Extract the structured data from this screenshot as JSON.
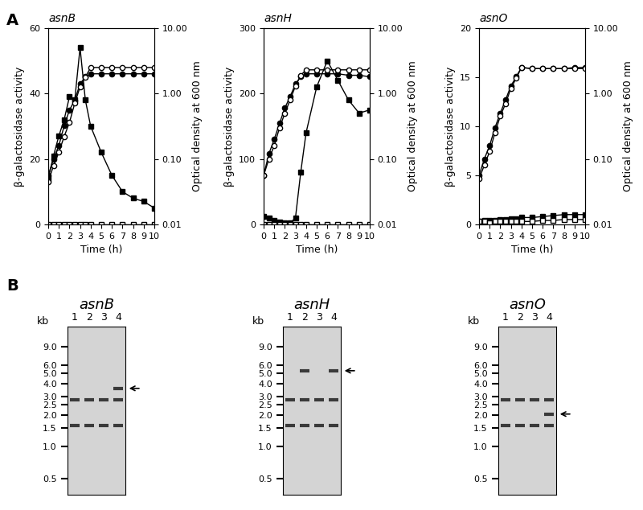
{
  "panel_labels": [
    "A",
    "B"
  ],
  "chart_data": [
    {
      "type": "line",
      "title": "asnB",
      "xlabel": "Time (h)",
      "ylabel": "β-galactosidase activity",
      "y2label": "Optical density at 600 nm",
      "x": [
        0,
        0.5,
        1,
        1.5,
        2,
        2.5,
        3,
        3.5,
        4,
        5,
        6,
        7,
        8,
        9,
        10
      ],
      "xlim": [
        0,
        10
      ],
      "xticks": [
        0,
        1,
        2,
        3,
        4,
        5,
        6,
        7,
        8,
        9,
        10
      ],
      "ylim": [
        0,
        60
      ],
      "yticks": [
        0,
        20,
        40,
        60
      ],
      "y2lim": [
        0.01,
        10
      ],
      "y2ticks": [
        {
          "value": 0.01,
          "label": "0.01"
        },
        {
          "value": 0.1,
          "label": "0.10"
        },
        {
          "value": 1,
          "label": "1.00"
        },
        {
          "value": 10,
          "label": "10.00"
        }
      ],
      "log": "y2",
      "series": [
        {
          "marker": "filled_square",
          "color": "#000000",
          "values": [
            14,
            21,
            27,
            32,
            39,
            38,
            54,
            38,
            30,
            22,
            15,
            10,
            8,
            7,
            5
          ]
        },
        {
          "marker": "open_square",
          "color": "#000000",
          "values": [
            0,
            0,
            0,
            0,
            0,
            0,
            0,
            0,
            0,
            0,
            0,
            0,
            0,
            0,
            0
          ]
        },
        {
          "marker": "filled_circle",
          "color": "#000000",
          "axis": "y2",
          "values": [
            0.056,
            0.1,
            0.16,
            0.32,
            0.56,
            0.79,
            1.4,
            1.8,
            2.0,
            2.0,
            2.0,
            2.0,
            2.0,
            2.0,
            2.0
          ]
        },
        {
          "marker": "open_circle",
          "color": "#000000",
          "axis": "y2",
          "values": [
            0.045,
            0.079,
            0.126,
            0.22,
            0.36,
            0.71,
            1.26,
            1.78,
            2.5,
            2.5,
            2.5,
            2.5,
            2.5,
            2.5,
            2.5
          ]
        }
      ]
    },
    {
      "type": "line",
      "title": "asnH",
      "xlabel": "Time (h)",
      "ylabel": "β-galactosidase activity",
      "y2label": "Optical density at 600 nm",
      "x": [
        0,
        0.5,
        1,
        1.5,
        2,
        2.5,
        3,
        3.5,
        4,
        5,
        6,
        7,
        8,
        9,
        10
      ],
      "xlim": [
        0,
        10
      ],
      "xticks": [
        0,
        1,
        2,
        3,
        4,
        5,
        6,
        7,
        8,
        9,
        10
      ],
      "ylim": [
        0,
        300
      ],
      "yticks": [
        0,
        100,
        200,
        300
      ],
      "y2lim": [
        0.01,
        10
      ],
      "y2ticks": [
        {
          "value": 0.01,
          "label": "0.01"
        },
        {
          "value": 0.1,
          "label": "0.10"
        },
        {
          "value": 1,
          "label": "1.00"
        },
        {
          "value": 10,
          "label": "10.00"
        }
      ],
      "log": "y2",
      "series": [
        {
          "marker": "filled_square",
          "color": "#000000",
          "values": [
            12,
            10,
            6,
            4,
            3,
            2,
            10,
            80,
            140,
            210,
            250,
            220,
            190,
            170,
            175
          ]
        },
        {
          "marker": "open_square",
          "color": "#000000",
          "values": [
            0,
            0,
            0,
            0,
            0,
            0,
            0,
            0,
            0,
            0,
            0,
            0,
            0,
            0,
            0
          ]
        },
        {
          "marker": "filled_circle",
          "color": "#000000",
          "axis": "y2",
          "values": [
            0.056,
            0.12,
            0.2,
            0.35,
            0.6,
            0.9,
            1.4,
            1.8,
            2.0,
            2.0,
            2.0,
            2.0,
            1.9,
            1.9,
            1.8
          ]
        },
        {
          "marker": "open_circle",
          "color": "#000000",
          "axis": "y2",
          "values": [
            0.056,
            0.1,
            0.16,
            0.3,
            0.5,
            0.8,
            1.3,
            1.9,
            2.3,
            2.3,
            2.3,
            2.3,
            2.3,
            2.3,
            2.3
          ]
        }
      ]
    },
    {
      "type": "line",
      "title": "asnO",
      "xlabel": "Time (h)",
      "ylabel": "β-galactosidase activity",
      "y2label": "Optical density at 600 nm",
      "x": [
        0,
        0.5,
        1,
        1.5,
        2,
        2.5,
        3,
        3.5,
        4,
        5,
        6,
        7,
        8,
        9,
        10
      ],
      "xlim": [
        0,
        10
      ],
      "xticks": [
        0,
        1,
        2,
        3,
        4,
        5,
        6,
        7,
        8,
        9,
        10
      ],
      "ylim": [
        0,
        20
      ],
      "yticks": [
        0,
        5,
        10,
        15,
        20
      ],
      "y2lim": [
        0.01,
        10
      ],
      "y2ticks": [
        {
          "value": 0.01,
          "label": "0.01"
        },
        {
          "value": 0.1,
          "label": "0.10"
        },
        {
          "value": 1,
          "label": "1.00"
        },
        {
          "value": 10,
          "label": "10.00"
        }
      ],
      "log": "y2",
      "series": [
        {
          "marker": "filled_square",
          "color": "#000000",
          "values": [
            0.3,
            0.4,
            0.4,
            0.4,
            0.5,
            0.5,
            0.6,
            0.6,
            0.7,
            0.7,
            0.8,
            0.9,
            1.0,
            1.0,
            1.0
          ]
        },
        {
          "marker": "open_square",
          "color": "#000000",
          "values": [
            0.3,
            0.3,
            0.2,
            0.3,
            0.3,
            0.3,
            0.3,
            0.3,
            0.3,
            0.3,
            0.4,
            0.4,
            0.5,
            0.5,
            0.5
          ]
        },
        {
          "marker": "filled_circle",
          "color": "#000000",
          "axis": "y2",
          "values": [
            0.056,
            0.1,
            0.16,
            0.3,
            0.5,
            0.8,
            1.3,
            1.8,
            2.5,
            2.4,
            2.4,
            2.4,
            2.4,
            2.5,
            2.5
          ]
        },
        {
          "marker": "open_circle",
          "color": "#000000",
          "axis": "y2",
          "values": [
            0.05,
            0.08,
            0.13,
            0.25,
            0.45,
            0.7,
            1.2,
            1.7,
            2.5,
            2.4,
            2.4,
            2.4,
            2.4,
            2.4,
            2.4
          ]
        }
      ]
    }
  ],
  "blots": [
    {
      "title": "asnB",
      "lanes": [
        "1",
        "2",
        "3",
        "4"
      ],
      "ylabel": "kb",
      "log": "y",
      "ylim": [
        0.35,
        14
      ],
      "yticks": [
        0.5,
        1.0,
        1.5,
        2.0,
        2.5,
        3.0,
        4.0,
        5.0,
        6.0,
        9.0
      ],
      "arrow_kb": 3.6,
      "bands": [
        {
          "lane": "1",
          "kb": 2.8
        },
        {
          "lane": "2",
          "kb": 2.8
        },
        {
          "lane": "3",
          "kb": 2.8
        },
        {
          "lane": "4",
          "kb": 2.8
        },
        {
          "lane": "1",
          "kb": 1.6
        },
        {
          "lane": "2",
          "kb": 1.6
        },
        {
          "lane": "3",
          "kb": 1.6
        },
        {
          "lane": "4",
          "kb": 1.6
        },
        {
          "lane": "4",
          "kb": 3.6
        }
      ]
    },
    {
      "title": "asnH",
      "lanes": [
        "1",
        "2",
        "3",
        "4"
      ],
      "ylabel": "kb",
      "log": "y",
      "ylim": [
        0.35,
        14
      ],
      "yticks": [
        0.5,
        1.0,
        1.5,
        2.0,
        2.5,
        3.0,
        4.0,
        5.0,
        6.0,
        9.0
      ],
      "arrow_kb": 5.3,
      "bands": [
        {
          "lane": "1",
          "kb": 2.8
        },
        {
          "lane": "2",
          "kb": 2.8
        },
        {
          "lane": "3",
          "kb": 2.8
        },
        {
          "lane": "4",
          "kb": 2.8
        },
        {
          "lane": "1",
          "kb": 1.6
        },
        {
          "lane": "2",
          "kb": 1.6
        },
        {
          "lane": "3",
          "kb": 1.6
        },
        {
          "lane": "4",
          "kb": 1.6
        },
        {
          "lane": "2",
          "kb": 5.3
        },
        {
          "lane": "4",
          "kb": 5.3
        }
      ]
    },
    {
      "title": "asnO",
      "lanes": [
        "1",
        "2",
        "3",
        "4"
      ],
      "ylabel": "kb",
      "log": "y",
      "ylim": [
        0.35,
        14
      ],
      "yticks": [
        0.5,
        1.0,
        1.5,
        2.0,
        2.5,
        3.0,
        4.0,
        5.0,
        6.0,
        9.0
      ],
      "arrow_kb": 2.05,
      "bands": [
        {
          "lane": "1",
          "kb": 2.8
        },
        {
          "lane": "2",
          "kb": 2.8
        },
        {
          "lane": "3",
          "kb": 2.8
        },
        {
          "lane": "4",
          "kb": 2.8
        },
        {
          "lane": "1",
          "kb": 1.6
        },
        {
          "lane": "2",
          "kb": 1.6
        },
        {
          "lane": "3",
          "kb": 1.6
        },
        {
          "lane": "4",
          "kb": 1.6
        },
        {
          "lane": "4",
          "kb": 2.05
        }
      ]
    }
  ]
}
